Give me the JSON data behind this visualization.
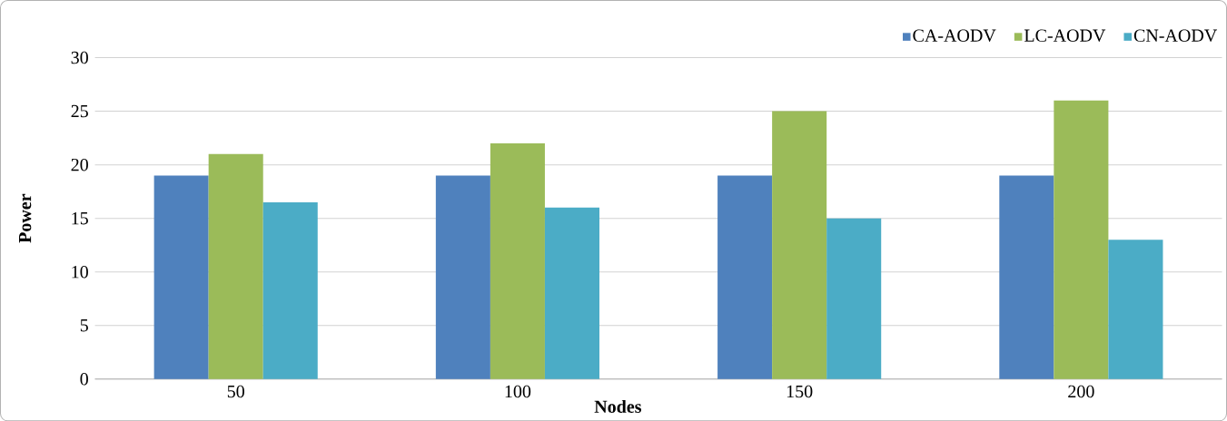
{
  "chart_data": {
    "type": "bar",
    "xlabel": "Nodes",
    "ylabel": "Power",
    "categories": [
      "50",
      "100",
      "150",
      "200"
    ],
    "series": [
      {
        "name": "CA-AODV",
        "color": "#4f81bd",
        "values": [
          19,
          19,
          19,
          19
        ]
      },
      {
        "name": "LC-AODV",
        "color": "#9bbb59",
        "values": [
          21,
          22,
          25,
          26
        ]
      },
      {
        "name": "CN-AODV",
        "color": "#4bacc6",
        "values": [
          16.5,
          16,
          15,
          13
        ]
      }
    ],
    "ylim": [
      0,
      30
    ],
    "yticks": [
      0,
      5,
      10,
      15,
      20,
      25,
      30
    ],
    "grid": "y",
    "legend": "top right"
  }
}
